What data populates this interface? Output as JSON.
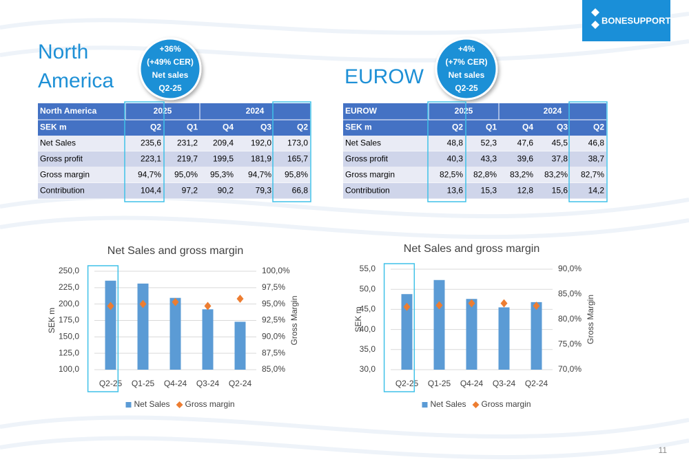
{
  "logo": "BONESUPPORT",
  "page_number": "11",
  "regions": [
    {
      "title_lines": [
        "North",
        "America"
      ],
      "badge_lines": [
        "+36%",
        "(+49% CER)",
        "Net sales",
        "Q2-25"
      ],
      "table": {
        "header": [
          "North America",
          "2025",
          "2024"
        ],
        "columns": [
          "SEK m",
          "Q2",
          "Q1",
          "Q4",
          "Q3",
          "Q2"
        ],
        "rows": [
          {
            "label": "Net Sales",
            "values": [
              "235,6",
              "231,2",
              "209,4",
              "192,0",
              "173,0"
            ]
          },
          {
            "label": "Gross profit",
            "values": [
              "223,1",
              "219,7",
              "199,5",
              "181,9",
              "165,7"
            ]
          },
          {
            "label": "Gross margin",
            "values": [
              "94,7%",
              "95,0%",
              "95,3%",
              "94,7%",
              "95,8%"
            ]
          },
          {
            "label": "Contribution",
            "values": [
              "104,4",
              "97,2",
              "90,2",
              "79,3",
              "66,8"
            ]
          }
        ]
      }
    },
    {
      "title_lines": [
        "EUROW"
      ],
      "badge_lines": [
        "+4%",
        "(+7% CER)",
        "Net sales",
        "Q2-25"
      ],
      "table": {
        "header": [
          "EUROW",
          "2025",
          "2024"
        ],
        "columns": [
          "SEK m",
          "Q2",
          "Q1",
          "Q4",
          "Q3",
          "Q2"
        ],
        "rows": [
          {
            "label": "Net Sales",
            "values": [
              "48,8",
              "52,3",
              "47,6",
              "45,5",
              "46,8"
            ]
          },
          {
            "label": "Gross profit",
            "values": [
              "40,3",
              "43,3",
              "39,6",
              "37,8",
              "38,7"
            ]
          },
          {
            "label": "Gross margin",
            "values": [
              "82,5%",
              "82,8%",
              "83,2%",
              "83,2%",
              "82,7%"
            ]
          },
          {
            "label": "Contribution",
            "values": [
              "13,6",
              "15,3",
              "12,8",
              "15,6",
              "14,2"
            ]
          }
        ]
      }
    }
  ],
  "chart_data": [
    {
      "type": "bar",
      "title": "Net Sales and gross margin",
      "categories": [
        "Q2-25",
        "Q1-25",
        "Q4-24",
        "Q3-24",
        "Q2-24"
      ],
      "series": [
        {
          "name": "Net Sales",
          "color": "#5b9bd5",
          "values": [
            235.6,
            231.2,
            209.4,
            192.0,
            173.0
          ]
        },
        {
          "name": "Gross margin",
          "color": "#ed7d31",
          "marker": "diamond",
          "axis": "y2",
          "values": [
            94.7,
            95.0,
            95.3,
            94.7,
            95.8
          ]
        }
      ],
      "ylabel": "SEK m",
      "y2label": "Gross Margin",
      "ylim": [
        100,
        250
      ],
      "yticks": [
        {
          "value": 100,
          "label": "100,0"
        },
        {
          "value": 125,
          "label": "125,0"
        },
        {
          "value": 150,
          "label": "150,0"
        },
        {
          "value": 175,
          "label": "175,0"
        },
        {
          "value": 200,
          "label": "200,0"
        },
        {
          "value": 225,
          "label": "225,0"
        },
        {
          "value": 250,
          "label": "250,0"
        }
      ],
      "y2lim": [
        85,
        100
      ],
      "y2ticks": [
        {
          "value": 85,
          "label": "85,0%"
        },
        {
          "value": 87.5,
          "label": "87,5%"
        },
        {
          "value": 90,
          "label": "90,0%"
        },
        {
          "value": 92.5,
          "label": "92,5%"
        },
        {
          "value": 95,
          "label": "95,0%"
        },
        {
          "value": 97.5,
          "label": "97,5%"
        },
        {
          "value": 100,
          "label": "100,0%"
        }
      ],
      "grid": true,
      "legend": "bottom"
    },
    {
      "type": "bar",
      "title": "Net Sales and gross margin",
      "categories": [
        "Q2-25",
        "Q1-25",
        "Q4-24",
        "Q3-24",
        "Q2-24"
      ],
      "series": [
        {
          "name": "Net Sales",
          "color": "#5b9bd5",
          "values": [
            48.8,
            52.3,
            47.6,
            45.5,
            46.8
          ]
        },
        {
          "name": "Gross margin",
          "color": "#ed7d31",
          "marker": "diamond",
          "axis": "y2",
          "values": [
            82.5,
            82.8,
            83.2,
            83.2,
            82.7
          ]
        }
      ],
      "ylabel": "SEK m",
      "y2label": "Gross Margin",
      "ylim": [
        30,
        55
      ],
      "yticks": [
        {
          "value": 30,
          "label": "30,0"
        },
        {
          "value": 35,
          "label": "35,0"
        },
        {
          "value": 40,
          "label": "40,0"
        },
        {
          "value": 45,
          "label": "45,0"
        },
        {
          "value": 50,
          "label": "50,0"
        },
        {
          "value": 55,
          "label": "55,0"
        }
      ],
      "y2lim": [
        70,
        90
      ],
      "y2ticks": [
        {
          "value": 70,
          "label": "70,0%"
        },
        {
          "value": 75,
          "label": "75,0%"
        },
        {
          "value": 80,
          "label": "80,0%"
        },
        {
          "value": 85,
          "label": "85,0%"
        },
        {
          "value": 90,
          "label": "90,0%"
        }
      ],
      "grid": true,
      "legend": "bottom"
    }
  ]
}
